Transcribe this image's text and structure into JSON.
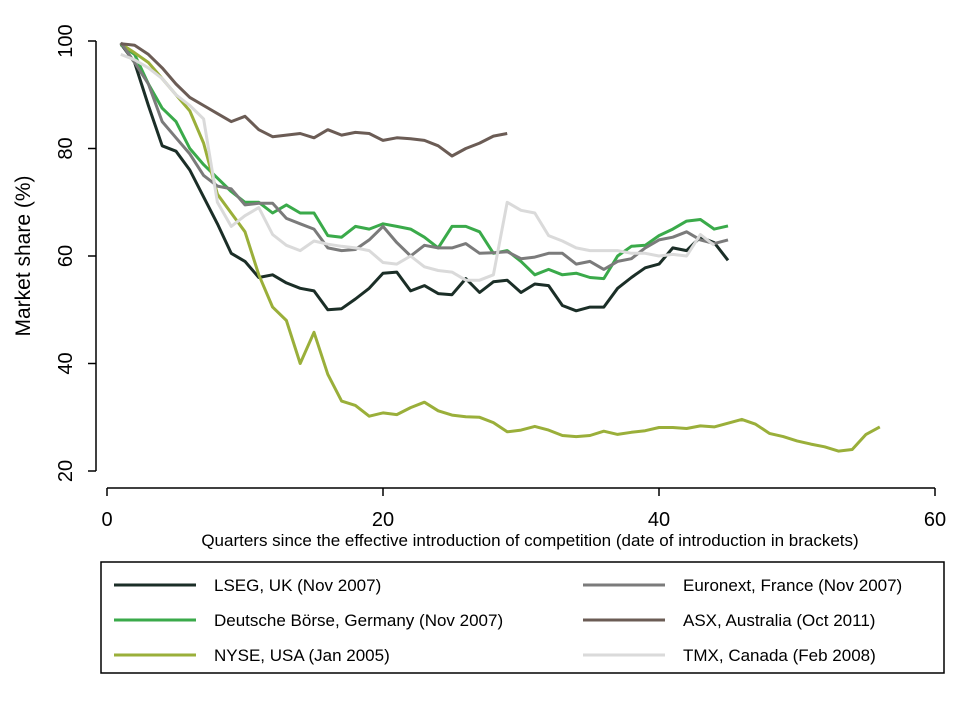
{
  "chart_data": {
    "type": "line",
    "title": "",
    "xlabel": "Quarters since the effective introduction of competition (date of introduction in brackets)",
    "ylabel": "Market share (%)",
    "xlim": [
      0,
      60
    ],
    "ylim": [
      20,
      100
    ],
    "xticks": [
      0,
      20,
      40,
      60
    ],
    "yticks": [
      20,
      40,
      60,
      80,
      100
    ],
    "grid": false,
    "legend_position": "bottom",
    "series": [
      {
        "name": "LSEG, UK (Nov 2007)",
        "color": "#1b2e27",
        "x": [
          1,
          2,
          3,
          4,
          5,
          6,
          7,
          8,
          9,
          10,
          11,
          12,
          13,
          14,
          15,
          16,
          17,
          18,
          19,
          20,
          21,
          22,
          23,
          24,
          25,
          26,
          27,
          28,
          29,
          30,
          31,
          32,
          33,
          34,
          35,
          36,
          37,
          38,
          39,
          40,
          41,
          42,
          43,
          44,
          45
        ],
        "y": [
          99.5,
          96,
          88,
          80.5,
          79.5,
          76,
          71,
          66,
          60.5,
          59,
          56,
          56.5,
          55,
          54,
          53.5,
          50,
          50.2,
          52,
          54,
          56.8,
          57,
          53.5,
          54.5,
          53,
          52.8,
          55.8,
          53.2,
          55.2,
          55.5,
          53.2,
          54.8,
          54.5,
          50.8,
          49.8,
          50.5,
          50.5,
          54,
          56,
          57.8,
          58.5,
          61.5,
          61,
          63.5,
          62.5,
          59.2
        ]
      },
      {
        "name": "Deutsche Börse, Germany (Nov 2007)",
        "color": "#3aaa4a",
        "x": [
          1,
          2,
          3,
          4,
          5,
          6,
          7,
          8,
          9,
          10,
          11,
          12,
          13,
          14,
          15,
          16,
          17,
          18,
          19,
          20,
          21,
          22,
          23,
          24,
          25,
          26,
          27,
          28,
          29,
          30,
          31,
          32,
          33,
          34,
          35,
          36,
          37,
          38,
          39,
          40,
          41,
          42,
          43,
          44,
          45
        ],
        "y": [
          99.3,
          97.5,
          92,
          87.5,
          85,
          80,
          77,
          74.5,
          72,
          70,
          70,
          68,
          69.5,
          68,
          68,
          63.8,
          63.5,
          65.5,
          65,
          66,
          65.5,
          65,
          63.5,
          61.5,
          65.5,
          65.5,
          64.5,
          60.5,
          61,
          59,
          56.5,
          57.5,
          56.5,
          56.8,
          56,
          55.8,
          60,
          61.8,
          62,
          63.8,
          65,
          66.5,
          66.8,
          65,
          65.6
        ]
      },
      {
        "name": "NYSE, USA (Jan 2005)",
        "color": "#9aaf3a",
        "x": [
          1,
          2,
          3,
          4,
          5,
          6,
          7,
          8,
          9,
          10,
          11,
          12,
          13,
          14,
          15,
          16,
          17,
          18,
          19,
          20,
          21,
          22,
          23,
          24,
          25,
          26,
          27,
          28,
          29,
          30,
          31,
          32,
          33,
          34,
          35,
          36,
          37,
          38,
          39,
          40,
          41,
          42,
          43,
          44,
          45,
          46,
          47,
          48,
          49,
          50,
          51,
          52,
          53,
          54,
          55,
          56
        ],
        "y": [
          99.5,
          97.8,
          96,
          93,
          90,
          87,
          81,
          71.5,
          68,
          64.5,
          56.5,
          50.5,
          48,
          40,
          45.8,
          38,
          33,
          32.2,
          30.2,
          30.8,
          30.5,
          31.8,
          32.8,
          31.2,
          30.4,
          30.1,
          30,
          29,
          27.3,
          27.6,
          28.3,
          27.6,
          26.6,
          26.4,
          26.6,
          27.4,
          26.8,
          27.2,
          27.5,
          28.1,
          28.1,
          27.9,
          28.4,
          28.2,
          28.9,
          29.6,
          28.7,
          27,
          26.4,
          25.6,
          25,
          24.5,
          23.7,
          24,
          26.8,
          28.2
        ]
      },
      {
        "name": "Euronext, France (Nov 2007)",
        "color": "#7b7b7b",
        "x": [
          1,
          2,
          3,
          4,
          5,
          6,
          7,
          8,
          9,
          10,
          11,
          12,
          13,
          14,
          15,
          16,
          17,
          18,
          19,
          20,
          21,
          22,
          23,
          24,
          25,
          26,
          27,
          28,
          29,
          30,
          31,
          32,
          33,
          34,
          35,
          36,
          37,
          38,
          39,
          40,
          41,
          42,
          43,
          44,
          45
        ],
        "y": [
          99.7,
          96,
          92,
          85,
          82,
          79,
          75,
          73,
          72.5,
          69.5,
          69.8,
          69.8,
          67,
          66,
          65,
          61.5,
          61,
          61.2,
          63,
          65.5,
          62.5,
          60,
          62,
          61.5,
          61.5,
          62.3,
          60.5,
          60.6,
          60.8,
          59.5,
          59.8,
          60.5,
          60.5,
          58.5,
          59,
          57.5,
          59,
          59.5,
          61.5,
          63,
          63.5,
          64.5,
          63,
          62.3,
          63
        ]
      },
      {
        "name": "ASX, Australia (Oct 2011)",
        "color": "#6b5c55",
        "x": [
          1,
          2,
          3,
          4,
          5,
          6,
          7,
          8,
          9,
          10,
          11,
          12,
          13,
          14,
          15,
          16,
          17,
          18,
          19,
          20,
          21,
          22,
          23,
          24,
          25,
          26,
          27,
          28,
          29
        ],
        "y": [
          99.5,
          99.2,
          97.5,
          95,
          92,
          89.5,
          88,
          86.5,
          85,
          86,
          83.5,
          82.2,
          82.5,
          82.8,
          82,
          83.5,
          82.5,
          83,
          82.8,
          81.5,
          82,
          81.8,
          81.5,
          80.5,
          78.6,
          80,
          81,
          82.3,
          82.8
        ]
      },
      {
        "name": "TMX, Canada (Feb 2008)",
        "color": "#dadada",
        "x": [
          1,
          2,
          3,
          4,
          5,
          6,
          7,
          8,
          9,
          10,
          11,
          12,
          13,
          14,
          15,
          16,
          17,
          18,
          19,
          20,
          21,
          22,
          23,
          24,
          25,
          26,
          27,
          28,
          29,
          30,
          31,
          32,
          33,
          34,
          35,
          36,
          37,
          38,
          39,
          40,
          41,
          42,
          43,
          44
        ],
        "y": [
          97.5,
          96.5,
          95,
          93,
          90,
          88,
          85.5,
          70,
          65.5,
          67.5,
          69,
          64,
          62,
          61,
          62.8,
          62.2,
          61.8,
          61.5,
          61,
          58.8,
          58.5,
          60,
          58,
          57.3,
          57,
          55.5,
          55.5,
          56.5,
          70,
          68.5,
          68,
          63.8,
          62.8,
          61.5,
          61,
          61,
          61,
          60.5,
          60.5,
          60,
          60.3,
          60,
          64,
          62
        ]
      }
    ]
  }
}
